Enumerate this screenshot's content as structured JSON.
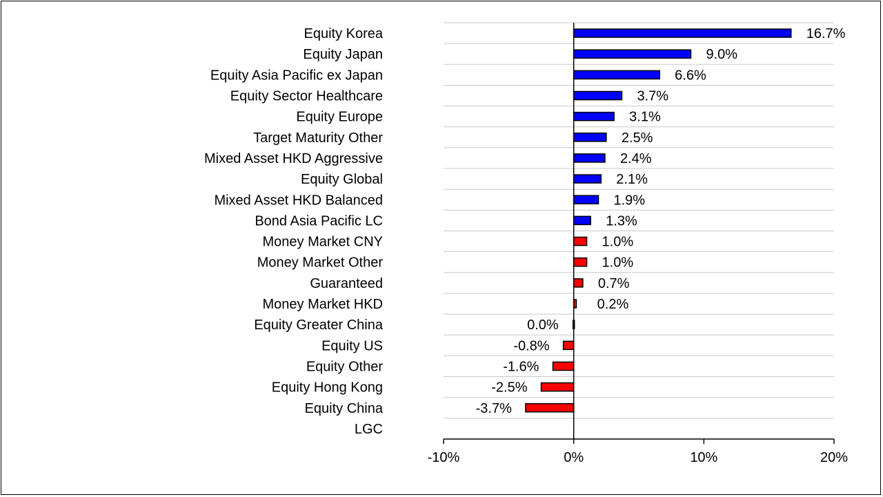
{
  "chart_data": {
    "type": "bar",
    "orientation": "horizontal",
    "categories": [
      "Equity Korea",
      "Equity Japan",
      "Equity Asia Pacific ex Japan",
      "Equity Sector Healthcare",
      "Equity Europe",
      "Target Maturity Other",
      "Mixed Asset HKD Aggressive",
      "Equity Global",
      "Mixed Asset HKD Balanced",
      "Bond Asia Pacific LC",
      "Money Market CNY",
      "Money Market Other",
      "Guaranteed",
      "Money Market HKD",
      "Equity Greater China",
      "Equity US",
      "Equity Other",
      "Equity Hong Kong",
      "Equity China",
      "LGC"
    ],
    "values": [
      16.7,
      9.0,
      6.6,
      3.7,
      3.1,
      2.5,
      2.4,
      2.1,
      1.9,
      1.3,
      1.0,
      1.0,
      0.7,
      0.2,
      0.0,
      -0.8,
      -1.6,
      -2.5,
      -3.7,
      null
    ],
    "value_labels": [
      "16.7%",
      "9.0%",
      "6.6%",
      "3.7%",
      "3.1%",
      "2.5%",
      "2.4%",
      "2.1%",
      "1.9%",
      "1.3%",
      "1.0%",
      "1.0%",
      "0.7%",
      "0.2%",
      "0.0%",
      "-0.8%",
      "-1.6%",
      "-2.5%",
      "-3.7%",
      ""
    ],
    "bar_colors": [
      "#0000ff",
      "#0000ff",
      "#0000ff",
      "#0000ff",
      "#0000ff",
      "#0000ff",
      "#0000ff",
      "#0000ff",
      "#0000ff",
      "#0000ff",
      "#ff0000",
      "#ff0000",
      "#ff0000",
      "#ff0000",
      "#ff0000",
      "#ff0000",
      "#ff0000",
      "#ff0000",
      "#ff0000",
      "#ff0000"
    ],
    "x_ticks": [
      -10,
      0,
      10,
      20
    ],
    "x_tick_labels": [
      "-10%",
      "0%",
      "10%",
      "20%"
    ],
    "xlim": [
      -10,
      20
    ],
    "grid": "horizontal",
    "legend": "none"
  }
}
